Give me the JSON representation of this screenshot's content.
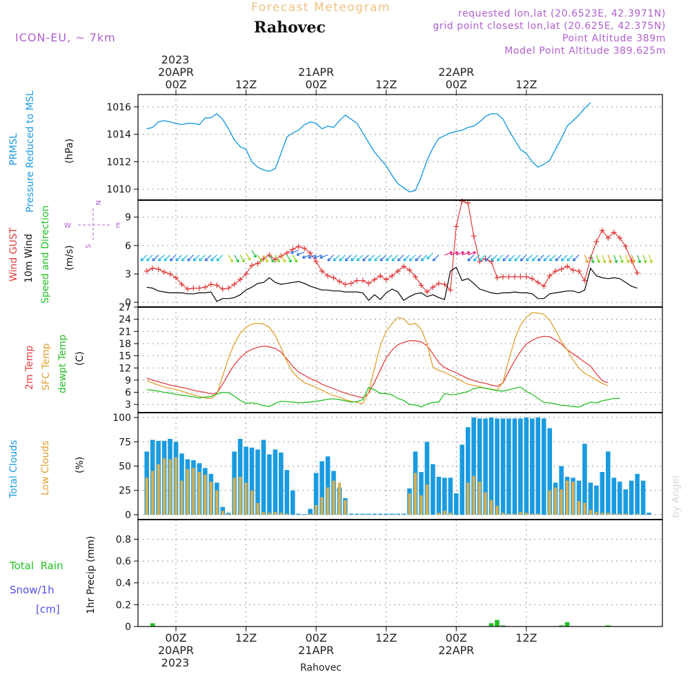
{
  "header": {
    "app_title": "Forecast Meteogram",
    "location": "Rahovec",
    "model": "ICON-EU, ~ 7km",
    "requested": "requested lon,lat (20.6523E, 42.3971N)",
    "grid_point": "grid point closest lon,lat (20.625E, 42.375N)",
    "point_altitude": "Point Altitude 389m",
    "model_altitude": "Model Point Altitude 389.625m",
    "footer_location": "Rahovec",
    "watermark": "by Angel"
  },
  "time_axis": {
    "year": "2023",
    "ticks": [
      {
        "hour": 0,
        "label": "00Z",
        "date": "20APR"
      },
      {
        "hour": 12,
        "label": "12Z",
        "date": ""
      },
      {
        "hour": 24,
        "label": "00Z",
        "date": "21APR"
      },
      {
        "hour": 36,
        "label": "12Z",
        "date": ""
      },
      {
        "hour": 48,
        "label": "00Z",
        "date": "22APR"
      },
      {
        "hour": 60,
        "label": "12Z",
        "date": ""
      }
    ]
  },
  "colors": {
    "pressure": "#1a9be0",
    "gust": "#e03a3a",
    "wind": "#000000",
    "temp2m": "#e04040",
    "sfc": "#e0a030",
    "dewpt": "#22c022",
    "total_cloud": "#1a9be0",
    "low_cloud": "#d8b050",
    "rain": "#22c022",
    "snow": "#5050e0",
    "header_purple": "#b060d0",
    "header_orange": "#f0c080"
  },
  "chart_data": [
    {
      "type": "line",
      "panel": "pressure",
      "ylabel_lines": [
        "PRMSL",
        "Pressure Reduced to MSL"
      ],
      "unit": "(hPa)",
      "ylim": [
        1009.2,
        1016.9
      ],
      "yticks": [
        1010,
        1012,
        1014,
        1016
      ],
      "series": [
        {
          "x_start": -5,
          "step": 1,
          "values": [
            1014.4,
            1014.5,
            1014.9,
            1015.0,
            1014.9,
            1014.8,
            1014.7,
            1014.8,
            1014.8,
            1014.7,
            1015.2,
            1015.2,
            1015.5,
            1015.1,
            1014.4,
            1013.6,
            1013.1,
            1012.9,
            1012.0,
            1011.6,
            1011.4,
            1011.3,
            1011.5,
            1012.6,
            1013.8,
            1014.1,
            1014.3,
            1014.7,
            1014.9,
            1014.8,
            1014.4,
            1014.6,
            1014.5,
            1015.0,
            1015.4,
            1015.1,
            1014.8,
            1014.1,
            1013.4,
            1012.7,
            1012.2,
            1011.7,
            1011.0,
            1010.4,
            1010.1,
            1009.8,
            1009.9,
            1010.9,
            1012.1,
            1013.0,
            1013.7,
            1013.9,
            1014.1,
            1014.2,
            1014.3,
            1014.5,
            1014.6,
            1014.9,
            1015.3,
            1015.5,
            1015.5,
            1015.1,
            1014.3,
            1013.6,
            1012.9,
            1012.6,
            1012.0,
            1011.6,
            1011.8,
            1012.1,
            1012.9,
            1013.7,
            1014.6,
            1015.0,
            1015.4,
            1015.9,
            1016.3
          ]
        }
      ]
    },
    {
      "type": "line",
      "panel": "wind",
      "ylabel_lines": [
        "Wind GUST",
        "10m Wind",
        "Speed and Direction"
      ],
      "unit": "(m/s)",
      "compass": {
        "n": "N",
        "s": "S",
        "e": "E",
        "w": "W"
      },
      "ylim": [
        -0.5,
        10.8
      ],
      "yticks": [
        0,
        3,
        6,
        9
      ],
      "series": [
        {
          "name": "Wind GUST",
          "x_start": -5,
          "step": 1,
          "values": [
            3.3,
            3.6,
            3.5,
            3.2,
            3.0,
            2.6,
            1.9,
            1.4,
            1.5,
            1.5,
            1.6,
            1.9,
            1.8,
            1.4,
            1.5,
            1.9,
            2.4,
            3.0,
            3.9,
            4.1,
            4.6,
            5.0,
            4.5,
            4.9,
            5.2,
            5.6,
            5.9,
            5.7,
            5.2,
            4.3,
            3.3,
            2.8,
            2.6,
            2.2,
            1.9,
            2.0,
            2.3,
            2.3,
            2.0,
            2.4,
            2.8,
            2.4,
            2.8,
            3.3,
            3.8,
            3.4,
            2.7,
            1.8,
            1.1,
            1.6,
            2.0,
            1.9,
            1.3,
            8.0,
            10.7,
            10.5,
            7.0,
            4.3,
            4.6,
            4.3,
            2.6,
            2.7,
            2.7,
            2.7,
            2.7,
            2.7,
            2.5,
            2.1,
            1.7,
            2.8,
            3.3,
            3.5,
            3.8,
            3.4,
            3.3,
            2.3,
            4.7,
            6.4,
            7.6,
            6.8,
            7.4,
            6.8,
            5.9,
            4.4,
            3.1
          ]
        },
        {
          "name": "10m Wind",
          "x_start": -5,
          "step": 1,
          "values": [
            1.6,
            1.5,
            1.2,
            1.1,
            1.0,
            1.0,
            1.0,
            0.9,
            0.9,
            1.0,
            1.0,
            1.1,
            0.1,
            0.4,
            0.4,
            0.5,
            0.8,
            1.3,
            1.6,
            2.0,
            2.1,
            2.6,
            2.1,
            1.9,
            2.0,
            2.1,
            2.2,
            2.0,
            1.7,
            1.5,
            1.3,
            1.3,
            1.2,
            1.2,
            1.1,
            1.1,
            1.1,
            1.0,
            0.2,
            0.8,
            0.3,
            1.0,
            1.4,
            1.1,
            0.2,
            0.6,
            0.9,
            1.0,
            0.6,
            0.8,
            0.5,
            0.3,
            3.3,
            3.7,
            2.3,
            2.5,
            2.0,
            1.4,
            1.2,
            1.0,
            0.9,
            1.0,
            1.0,
            1.1,
            1.0,
            1.0,
            0.9,
            0.4,
            0.4,
            0.9,
            1.0,
            1.1,
            1.2,
            1.2,
            1.0,
            1.3,
            3.6,
            2.8,
            2.6,
            2.5,
            2.6,
            2.5,
            2.1,
            1.7,
            1.5
          ]
        }
      ],
      "wind_barbs": {
        "x_start": -5,
        "step": 1,
        "speed": [
          5.0,
          5.0,
          5.0,
          5.0,
          5.0,
          5.0,
          5.0,
          5.0,
          5.0,
          5.0,
          5.0,
          5.0,
          5.0,
          5.0,
          5.0,
          5.0,
          5.0,
          5.2,
          5.5,
          5.0,
          5.0,
          5.0,
          5.0,
          5.0,
          5.0,
          5.0,
          5.5,
          5.3,
          5.0,
          5.0,
          5.0,
          5.0,
          5.0,
          5.0,
          5.0,
          5.0,
          5.0,
          5.0,
          5.0,
          5.0,
          5.0,
          5.0,
          5.0,
          5.0,
          5.0,
          5.0,
          5.0,
          5.0,
          5.0,
          5.2,
          5.0,
          5.0,
          5.0,
          5.0,
          5.0,
          5.0,
          5.0,
          5.0,
          5.0,
          5.0,
          5.0,
          5.0,
          5.0,
          5.0,
          5.0,
          5.0,
          5.0,
          5.0,
          5.0,
          5.0,
          5.0,
          5.0,
          5.0,
          5.0,
          5.0,
          5.0,
          5.0,
          5.0,
          5.0,
          5.0,
          5.0,
          5.0,
          5.0,
          5.0,
          5.0,
          5.0,
          5.0
        ]
      }
    },
    {
      "type": "line",
      "panel": "temperature",
      "ylabel_lines": [
        "2m Temp",
        "SFC Temp",
        "dewpt Temp"
      ],
      "unit": "(C)",
      "ylim": [
        1.0,
        27.0
      ],
      "yticks": [
        3,
        6,
        9,
        12,
        15,
        18,
        21,
        24,
        27
      ],
      "series": [
        {
          "name": "2m Temp",
          "x_start": -5,
          "step": 1,
          "values": [
            9.5,
            9.0,
            8.6,
            8.2,
            7.8,
            7.5,
            7.2,
            6.9,
            6.5,
            6.2,
            6.0,
            5.6,
            5.8,
            8.0,
            10.5,
            12.8,
            14.5,
            15.8,
            16.6,
            17.1,
            17.4,
            17.2,
            16.8,
            15.9,
            14.2,
            12.4,
            11.0,
            10.2,
            9.4,
            8.8,
            8.0,
            7.4,
            6.9,
            6.3,
            5.8,
            5.4,
            5.0,
            4.6,
            5.8,
            8.5,
            11.5,
            14.5,
            16.4,
            17.7,
            18.3,
            18.7,
            18.7,
            18.4,
            17.5,
            15.5,
            13.3,
            12.1,
            11.4,
            10.8,
            10.1,
            9.4,
            8.9,
            8.5,
            8.2,
            7.8,
            7.5,
            8.3,
            11.2,
            13.8,
            16.0,
            17.9,
            18.8,
            19.5,
            19.8,
            19.7,
            18.9,
            17.9,
            16.5,
            15.5,
            14.5,
            13.4,
            12.4,
            10.5,
            8.9,
            8.3
          ]
        },
        {
          "name": "SFC Temp",
          "x_start": -5,
          "step": 1,
          "values": [
            8.8,
            8.3,
            7.8,
            7.3,
            7.0,
            6.7,
            6.3,
            5.8,
            5.4,
            5.0,
            4.6,
            4.5,
            5.6,
            10.0,
            14.5,
            18.0,
            20.5,
            22.0,
            22.8,
            23.0,
            22.8,
            22.0,
            20.0,
            17.0,
            13.5,
            11.0,
            9.5,
            8.4,
            7.8,
            7.2,
            6.5,
            5.8,
            5.2,
            4.8,
            4.2,
            3.8,
            3.5,
            3.2,
            6.0,
            12.0,
            17.5,
            21.0,
            22.9,
            24.4,
            24.1,
            22.6,
            23.0,
            21.5,
            18.0,
            12.2,
            11.4,
            10.9,
            10.2,
            9.5,
            8.7,
            8.0,
            7.7,
            7.4,
            7.0,
            6.8,
            6.5,
            8.5,
            14.0,
            19.0,
            22.5,
            24.5,
            25.6,
            25.5,
            25.2,
            23.7,
            21.3,
            18.5,
            16.5,
            14.0,
            12.0,
            10.7,
            9.9,
            9.0,
            8.2,
            7.6
          ]
        },
        {
          "name": "dewpt Temp",
          "x_start": -5,
          "step": 1,
          "values": [
            6.7,
            6.5,
            6.3,
            6.0,
            5.8,
            5.5,
            5.3,
            5.1,
            4.9,
            4.6,
            4.8,
            5.0,
            5.6,
            6.0,
            5.9,
            5.1,
            4.0,
            3.3,
            3.4,
            3.2,
            2.7,
            2.5,
            3.3,
            3.8,
            3.7,
            3.6,
            3.4,
            3.5,
            3.6,
            3.8,
            4.0,
            4.3,
            4.4,
            4.2,
            3.9,
            3.6,
            3.7,
            4.2,
            7.2,
            6.6,
            5.7,
            5.7,
            5.4,
            4.5,
            4.0,
            3.0,
            2.9,
            2.4,
            3.1,
            3.5,
            3.6,
            5.7,
            5.4,
            5.5,
            5.8,
            6.2,
            6.9,
            7.2,
            7.0,
            6.7,
            6.4,
            6.3,
            6.6,
            7.0,
            7.3,
            6.2,
            5.5,
            4.5,
            3.5,
            3.4,
            3.1,
            2.8,
            2.7,
            2.5,
            2.4,
            3.0,
            3.6,
            3.4,
            3.9,
            4.2,
            4.5,
            4.5
          ]
        }
      ]
    },
    {
      "type": "bar",
      "panel": "clouds",
      "ylabel_lines": [
        "Total Clouds",
        "Low Clouds"
      ],
      "unit": "(%)",
      "ylim": [
        -5,
        105
      ],
      "yticks": [
        0,
        25,
        50,
        75,
        100
      ],
      "series": [
        {
          "name": "Total Clouds",
          "x_start": -5,
          "step": 1,
          "values": [
            65,
            77,
            76,
            76,
            78,
            75,
            63,
            57,
            56,
            53,
            48,
            42,
            33,
            8,
            2,
            65,
            78,
            70,
            69,
            67,
            77,
            62,
            67,
            64,
            46,
            25,
            1,
            0,
            6,
            43,
            55,
            60,
            45,
            28,
            17,
            1,
            1,
            1,
            1,
            1,
            1,
            1,
            1,
            1,
            1,
            27,
            65,
            44,
            75,
            52,
            39,
            38,
            38,
            22,
            72,
            90,
            100,
            99,
            99,
            100,
            99,
            99,
            99,
            99,
            99,
            100,
            99,
            100,
            99,
            89,
            33,
            50,
            39,
            38,
            35,
            73,
            33,
            30,
            44,
            65,
            38,
            34,
            26,
            35,
            42,
            35,
            2
          ]
        },
        {
          "name": "Low Clouds",
          "x_start": -5,
          "step": 1,
          "values": [
            38,
            45,
            52,
            58,
            57,
            59,
            35,
            47,
            48,
            44,
            41,
            34,
            25,
            4,
            1,
            38,
            39,
            33,
            25,
            12,
            3,
            2,
            3,
            2,
            1,
            0,
            0,
            0,
            1,
            10,
            18,
            28,
            35,
            33,
            15,
            0,
            0,
            0,
            0,
            0,
            0,
            0,
            0,
            0,
            0,
            22,
            43,
            20,
            31,
            0,
            2,
            4,
            2,
            0,
            0,
            33,
            40,
            34,
            23,
            15,
            9,
            2,
            1,
            1,
            3,
            2,
            1,
            1,
            0,
            25,
            28,
            26,
            35,
            34,
            14,
            12,
            5,
            3,
            2,
            2,
            1,
            1,
            1,
            0,
            1,
            0,
            0
          ]
        }
      ]
    },
    {
      "type": "bar",
      "panel": "precip",
      "ylabel_lines": [
        "Total  Rain",
        "Snow/1h",
        "[cm]"
      ],
      "unit": "1hr Precip (mm)",
      "ylim": [
        0,
        0.98
      ],
      "yticks": [
        0,
        0.2,
        0.4,
        0.6,
        0.8
      ],
      "ytick_labels": [
        "0",
        "0.2",
        "0.4",
        "0.6",
        "0.8"
      ],
      "series": [
        {
          "name": "Total Rain",
          "x_start": -5,
          "step": 1,
          "values": [
            0,
            0.03,
            0,
            0,
            0,
            0,
            0,
            0,
            0,
            0,
            0,
            0,
            0,
            0,
            0,
            0,
            0,
            0,
            0,
            0,
            0,
            0,
            0,
            0,
            0,
            0,
            0,
            0,
            0,
            0,
            0,
            0,
            0,
            0,
            0,
            0,
            0,
            0,
            0,
            0,
            0,
            0,
            0,
            0,
            0,
            0,
            0,
            0,
            0,
            0,
            0,
            0,
            0,
            0,
            0,
            0,
            0,
            0,
            0,
            0.03,
            0.06,
            0.01,
            0,
            0,
            0,
            0,
            0,
            0,
            0,
            0,
            0,
            0.01,
            0.04,
            0,
            0,
            0,
            0,
            0,
            0,
            0.01,
            0,
            0,
            0,
            0,
            0,
            0,
            0
          ]
        }
      ]
    }
  ]
}
